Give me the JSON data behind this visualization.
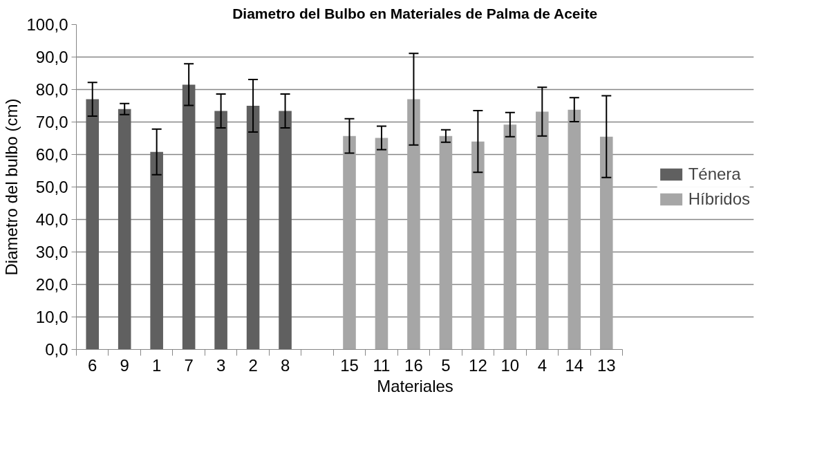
{
  "chart_data": {
    "type": "bar",
    "title": "Diametro del Bulbo en Materiales de Palma de Aceite",
    "xlabel": "Materiales",
    "ylabel": "Diametro del bulbo (cm)",
    "categories": [
      "6",
      "9",
      "1",
      "7",
      "3",
      "2",
      "8",
      null,
      "15",
      "11",
      "16",
      "5",
      "12",
      "10",
      "4",
      "14",
      "13"
    ],
    "series": [
      {
        "name": "Ténera",
        "color": "#606060",
        "values": [
          77.0,
          74.0,
          60.8,
          81.5,
          73.4,
          75.0,
          73.4,
          null,
          null,
          null,
          null,
          null,
          null,
          null,
          null,
          null,
          null
        ],
        "errors": [
          5.2,
          1.7,
          7.0,
          6.4,
          5.2,
          8.1,
          5.2,
          null,
          null,
          null,
          null,
          null,
          null,
          null,
          null,
          null,
          null
        ]
      },
      {
        "name": "Híbridos",
        "color": "#a6a6a6",
        "values": [
          null,
          null,
          null,
          null,
          null,
          null,
          null,
          null,
          65.7,
          65.1,
          77.0,
          65.7,
          64.0,
          69.2,
          73.2,
          73.8,
          65.5
        ],
        "errors": [
          null,
          null,
          null,
          null,
          null,
          null,
          null,
          null,
          5.3,
          3.6,
          14.1,
          1.9,
          9.5,
          3.7,
          7.5,
          3.7,
          12.6
        ]
      }
    ],
    "ylim": [
      0,
      100
    ],
    "yticks": [
      {
        "value": 0,
        "label": "0,0"
      },
      {
        "value": 10,
        "label": "10,0"
      },
      {
        "value": 20,
        "label": "20,0"
      },
      {
        "value": 30,
        "label": "30,0"
      },
      {
        "value": 40,
        "label": "40,0"
      },
      {
        "value": 50,
        "label": "50,0"
      },
      {
        "value": 60,
        "label": "60,0"
      },
      {
        "value": 70,
        "label": "70,0"
      },
      {
        "value": 80,
        "label": "80,0"
      },
      {
        "value": 90,
        "label": "90,0"
      },
      {
        "value": 100,
        "label": "100,0"
      }
    ],
    "grid": "y",
    "legend": "right"
  }
}
